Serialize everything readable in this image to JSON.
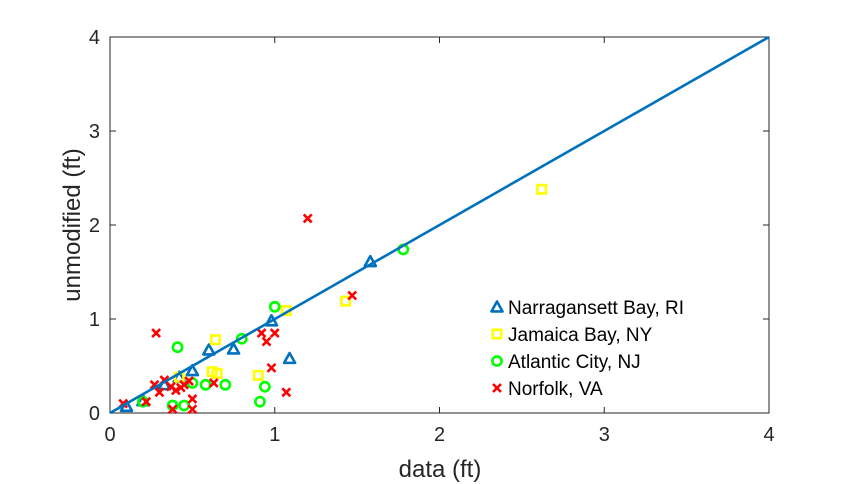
{
  "chart_data": {
    "type": "scatter",
    "title": "",
    "xlabel": "data (ft)",
    "ylabel": "unmodified (ft)",
    "xlim": [
      0,
      4
    ],
    "ylim": [
      0,
      4
    ],
    "xticks": [
      "0",
      "1",
      "2",
      "3",
      "4"
    ],
    "yticks": [
      "0",
      "1",
      "2",
      "3",
      "4"
    ],
    "grid": false,
    "legend_position": "lower-right",
    "colors": {
      "line": "#0072BD",
      "axis": "#262626"
    },
    "reference_line": {
      "x": [
        0,
        4
      ],
      "y": [
        0,
        4
      ]
    },
    "series": [
      {
        "name": "Narragansett Bay, RI",
        "marker": "triangle",
        "color": "#0072BD",
        "points": [
          [
            0.1,
            0.07
          ],
          [
            0.2,
            0.13
          ],
          [
            0.33,
            0.3
          ],
          [
            0.42,
            0.38
          ],
          [
            0.5,
            0.45
          ],
          [
            0.6,
            0.67
          ],
          [
            0.75,
            0.68
          ],
          [
            0.98,
            0.98
          ],
          [
            1.09,
            0.58
          ],
          [
            1.58,
            1.61
          ]
        ]
      },
      {
        "name": "Jamaica Bay, NY",
        "marker": "square",
        "color": "#FFFF00",
        "points": [
          [
            0.42,
            0.38
          ],
          [
            0.62,
            0.44
          ],
          [
            0.64,
            0.78
          ],
          [
            0.65,
            0.42
          ],
          [
            0.9,
            0.4
          ],
          [
            1.07,
            1.09
          ],
          [
            1.43,
            1.19
          ],
          [
            2.62,
            2.38
          ]
        ]
      },
      {
        "name": "Atlantic City, NJ",
        "marker": "circle",
        "color": "#00FF00",
        "points": [
          [
            0.2,
            0.12
          ],
          [
            0.38,
            0.08
          ],
          [
            0.41,
            0.7
          ],
          [
            0.45,
            0.08
          ],
          [
            0.5,
            0.32
          ],
          [
            0.58,
            0.3
          ],
          [
            0.7,
            0.3
          ],
          [
            0.8,
            0.79
          ],
          [
            0.91,
            0.12
          ],
          [
            0.94,
            0.28
          ],
          [
            1.0,
            1.13
          ],
          [
            1.78,
            1.74
          ]
        ]
      },
      {
        "name": "Norfolk, VA",
        "marker": "x",
        "color": "#FF0000",
        "points": [
          [
            0.08,
            0.1
          ],
          [
            0.22,
            0.12
          ],
          [
            0.27,
            0.3
          ],
          [
            0.28,
            0.85
          ],
          [
            0.3,
            0.22
          ],
          [
            0.33,
            0.35
          ],
          [
            0.37,
            0.28
          ],
          [
            0.38,
            0.04
          ],
          [
            0.4,
            0.24
          ],
          [
            0.43,
            0.27
          ],
          [
            0.45,
            0.3
          ],
          [
            0.48,
            0.34
          ],
          [
            0.5,
            0.15
          ],
          [
            0.5,
            0.04
          ],
          [
            0.63,
            0.32
          ],
          [
            0.92,
            0.85
          ],
          [
            0.95,
            0.76
          ],
          [
            0.98,
            0.48
          ],
          [
            1.0,
            0.85
          ],
          [
            1.07,
            0.22
          ],
          [
            1.2,
            2.07
          ],
          [
            1.47,
            1.25
          ]
        ]
      }
    ]
  }
}
